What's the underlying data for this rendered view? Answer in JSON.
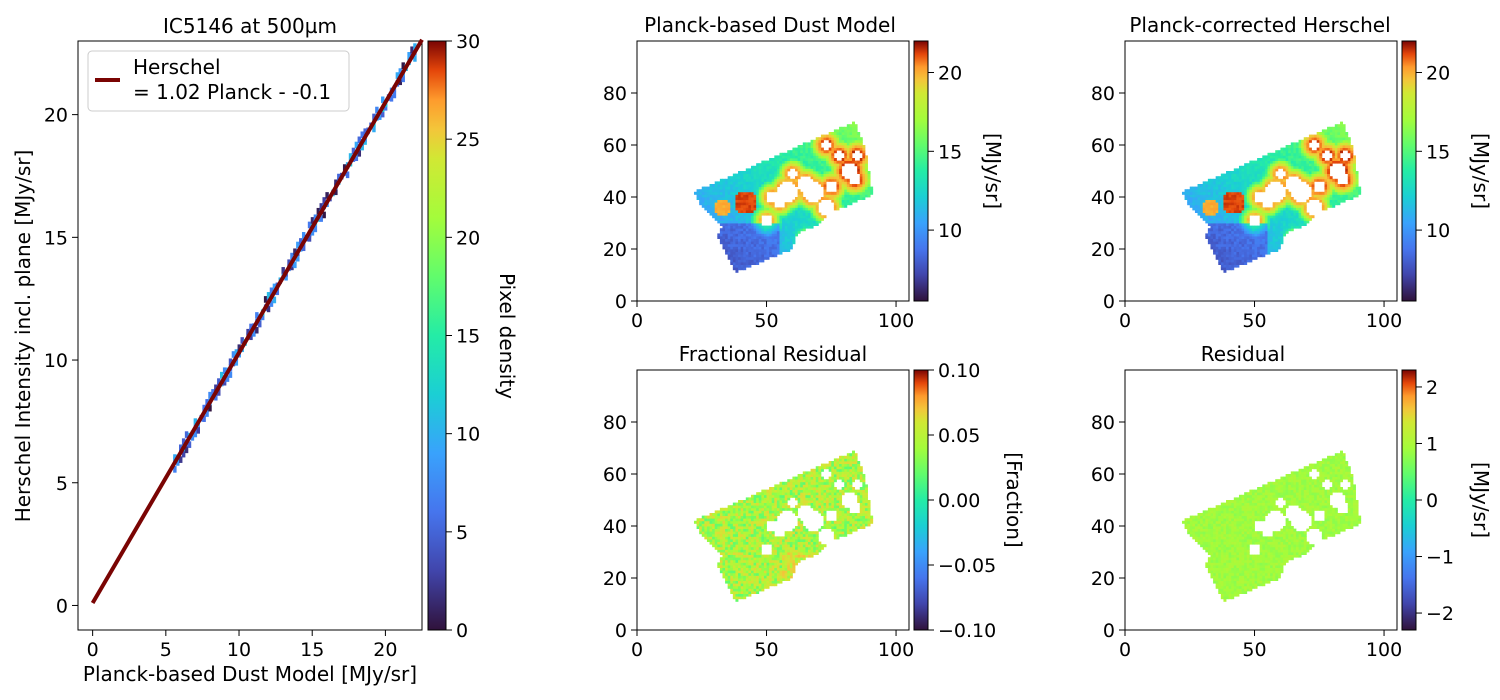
{
  "chart_data": [
    {
      "type": "heatmap",
      "role": "scatter-density",
      "title": "IC5146 at 500µm",
      "xlabel": "Planck-based Dust Model [MJy/sr]",
      "ylabel": "Herschel Intensity incl. plane [MJy/sr]",
      "xlim": [
        -1,
        22.5
      ],
      "ylim": [
        -1,
        23
      ],
      "xticks": [
        0,
        5,
        10,
        15,
        20
      ],
      "yticks": [
        0,
        5,
        10,
        15,
        20
      ],
      "fit_line": {
        "slope": 1.02,
        "intercept": 0.1,
        "x_range": [
          0,
          22.5
        ],
        "color": "#7a0403"
      },
      "legend": {
        "position": "top-left",
        "label_line1": "Herschel",
        "label_line2": "= 1.02 Planck - -0.1"
      },
      "density_range_x": [
        5.5,
        22
      ],
      "colorbar": {
        "label": "Pixel density",
        "range": [
          0,
          30
        ],
        "ticks": [
          0,
          5,
          10,
          15,
          20,
          25,
          30
        ],
        "colormap": "turbo"
      },
      "grid": false
    },
    {
      "type": "heatmap",
      "title": "Planck-based Dust Model",
      "xlim": [
        0,
        105
      ],
      "ylim": [
        0,
        100
      ],
      "xticks": [
        0,
        50,
        100
      ],
      "yticks": [
        0,
        20,
        40,
        60,
        80
      ],
      "colorbar": {
        "label": "[MJy/sr]",
        "range": [
          5.5,
          22
        ],
        "ticks": [
          10,
          15,
          20
        ],
        "colormap": "turbo"
      }
    },
    {
      "type": "heatmap",
      "title": "Planck-corrected Herschel",
      "xlim": [
        0,
        105
      ],
      "ylim": [
        0,
        100
      ],
      "xticks": [
        0,
        50,
        100
      ],
      "yticks": [
        0,
        20,
        40,
        60,
        80
      ],
      "colorbar": {
        "label": "[MJy/sr]",
        "range": [
          5.5,
          22
        ],
        "ticks": [
          10,
          15,
          20
        ],
        "colormap": "turbo"
      }
    },
    {
      "type": "heatmap",
      "title": "Fractional Residual",
      "xlim": [
        0,
        105
      ],
      "ylim": [
        0,
        100
      ],
      "xticks": [
        0,
        50,
        100
      ],
      "yticks": [
        0,
        20,
        40,
        60,
        80
      ],
      "colorbar": {
        "label": "[Fraction]",
        "range": [
          -0.1,
          0.1
        ],
        "ticks": [
          0.1,
          0.05,
          0.0,
          -0.05,
          -0.1
        ],
        "tick_labels": [
          "0.10",
          "0.05",
          "0.00",
          "−0.05",
          "−0.10"
        ],
        "colormap": "turbo"
      }
    },
    {
      "type": "heatmap",
      "title": "Residual",
      "xlim": [
        0,
        105
      ],
      "ylim": [
        0,
        100
      ],
      "xticks": [
        0,
        50,
        100
      ],
      "yticks": [
        0,
        20,
        40,
        60,
        80
      ],
      "colorbar": {
        "label": "[MJy/sr]",
        "range": [
          -2.3,
          2.3
        ],
        "ticks": [
          2,
          1,
          0,
          -1,
          -2
        ],
        "tick_labels": [
          "2",
          "1",
          "0",
          "−1",
          "−2"
        ],
        "colormap": "turbo"
      }
    }
  ],
  "map_region": {
    "outline": [
      [
        22,
        42
      ],
      [
        84,
        69
      ],
      [
        88,
        59
      ],
      [
        91,
        41
      ],
      [
        75,
        34
      ],
      [
        69,
        29
      ],
      [
        62,
        26
      ],
      [
        60,
        20
      ],
      [
        38,
        11
      ],
      [
        31,
        25
      ],
      [
        33,
        29
      ],
      [
        24,
        38
      ]
    ],
    "holes": [
      [
        82,
        50,
        3.5
      ],
      [
        84,
        47,
        2.5
      ],
      [
        65,
        45,
        3
      ],
      [
        68,
        42,
        4
      ],
      [
        58,
        42,
        4
      ],
      [
        55,
        38,
        2.5
      ],
      [
        50,
        31,
        2.5
      ],
      [
        73,
        36,
        3
      ],
      [
        66,
        23,
        2
      ],
      [
        52,
        40,
        2.5
      ],
      [
        75,
        44,
        2.5
      ],
      [
        73,
        60,
        2
      ],
      [
        78,
        56,
        2
      ],
      [
        85,
        56,
        2
      ],
      [
        60,
        49,
        2
      ]
    ]
  }
}
